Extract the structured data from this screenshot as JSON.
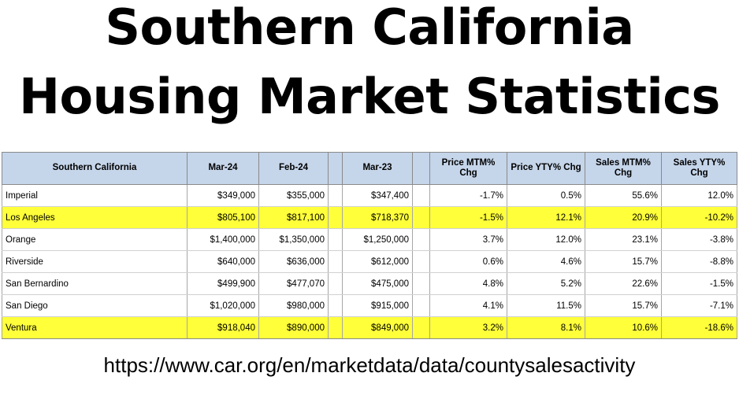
{
  "title_line1": "Southern California",
  "title_line2": "Housing Market Statistics",
  "source": "https://www.car.org/en/marketdata/data/countysalesactivity",
  "highlight_color": "#ffff3a",
  "header_color": "#c5d5ea",
  "chart_data": {
    "type": "table",
    "columns": [
      "Southern California",
      "Mar-24",
      "Feb-24",
      "",
      "Mar-23",
      "",
      "Price MTM% Chg",
      "Price YTY% Chg",
      "Sales MTM% Chg",
      "Sales YTY% Chg"
    ],
    "rows": [
      {
        "region": "Imperial",
        "mar24": "$349,000",
        "feb24": "$355,000",
        "mar23": "$347,400",
        "price_mtm": "-1.7%",
        "price_yty": "0.5%",
        "sales_mtm": "55.6%",
        "sales_yty": "12.0%",
        "highlighted": false
      },
      {
        "region": "Los Angeles",
        "mar24": "$805,100",
        "feb24": "$817,100",
        "mar23": "$718,370",
        "price_mtm": "-1.5%",
        "price_yty": "12.1%",
        "sales_mtm": "20.9%",
        "sales_yty": "-10.2%",
        "highlighted": true
      },
      {
        "region": "Orange",
        "mar24": "$1,400,000",
        "feb24": "$1,350,000",
        "mar23": "$1,250,000",
        "price_mtm": "3.7%",
        "price_yty": "12.0%",
        "sales_mtm": "23.1%",
        "sales_yty": "-3.8%",
        "highlighted": false
      },
      {
        "region": "Riverside",
        "mar24": "$640,000",
        "feb24": "$636,000",
        "mar23": "$612,000",
        "price_mtm": "0.6%",
        "price_yty": "4.6%",
        "sales_mtm": "15.7%",
        "sales_yty": "-8.8%",
        "highlighted": false
      },
      {
        "region": "San Bernardino",
        "mar24": "$499,900",
        "feb24": "$477,070",
        "mar23": "$475,000",
        "price_mtm": "4.8%",
        "price_yty": "5.2%",
        "sales_mtm": "22.6%",
        "sales_yty": "-1.5%",
        "highlighted": false
      },
      {
        "region": "San Diego",
        "mar24": "$1,020,000",
        "feb24": "$980,000",
        "mar23": "$915,000",
        "price_mtm": "4.1%",
        "price_yty": "11.5%",
        "sales_mtm": "15.7%",
        "sales_yty": "-7.1%",
        "highlighted": false
      },
      {
        "region": "Ventura",
        "mar24": "$918,040",
        "feb24": "$890,000",
        "mar23": "$849,000",
        "price_mtm": "3.2%",
        "price_yty": "8.1%",
        "sales_mtm": "10.6%",
        "sales_yty": "-18.6%",
        "highlighted": true
      }
    ]
  }
}
